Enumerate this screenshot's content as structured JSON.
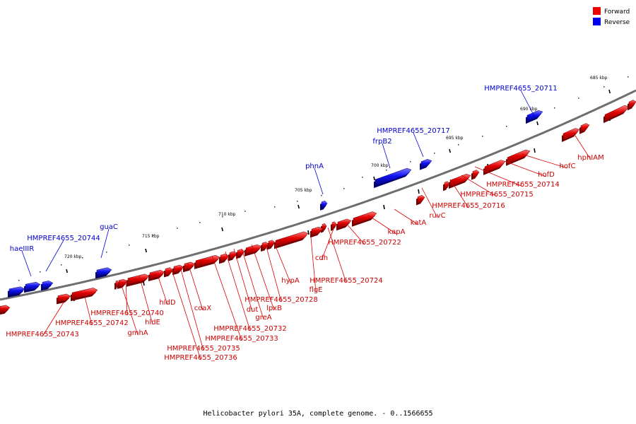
{
  "caption": "Helicobacter pylori 35A, complete genome. - 0..1566655",
  "legend": [
    {
      "label": "Forward",
      "color": "#ee0000"
    },
    {
      "label": "Reverse",
      "color": "#0000ee"
    }
  ],
  "ticks": [
    "685 kbp",
    "690 kbp",
    "695 kbp",
    "700 kbp",
    "705 kbp",
    "710 kbp",
    "715 kbp",
    "720 kbp"
  ],
  "genes_reverse": [
    "HMPREF4655_20711",
    "HMPREF4655_20717",
    "frpB2",
    "phnA",
    "guaC",
    "HMPREF4655_20744",
    "haeIIIR"
  ],
  "genes_forward": [
    "hphIAM",
    "hofC",
    "hofD",
    "HMPREF4655_20714",
    "HMPREF4655_20715",
    "HMPREF4655_20716",
    "ruvC",
    "katA",
    "kapA",
    "HMPREF4655_20722",
    "cdh",
    "HMPREF4655_20724",
    "flgE",
    "hypA",
    "HMPREF4655_20728",
    "lpxB",
    "greA",
    "dut",
    "HMPREF4655_20732",
    "HMPREF4655_20733",
    "coaX",
    "HMPREF4655_20735",
    "HMPREF4655_20736",
    "hldD",
    "hldE",
    "HMPREF4655_20740",
    "gmhA",
    "HMPREF4655_20742",
    "HMPREF4655_20743"
  ]
}
